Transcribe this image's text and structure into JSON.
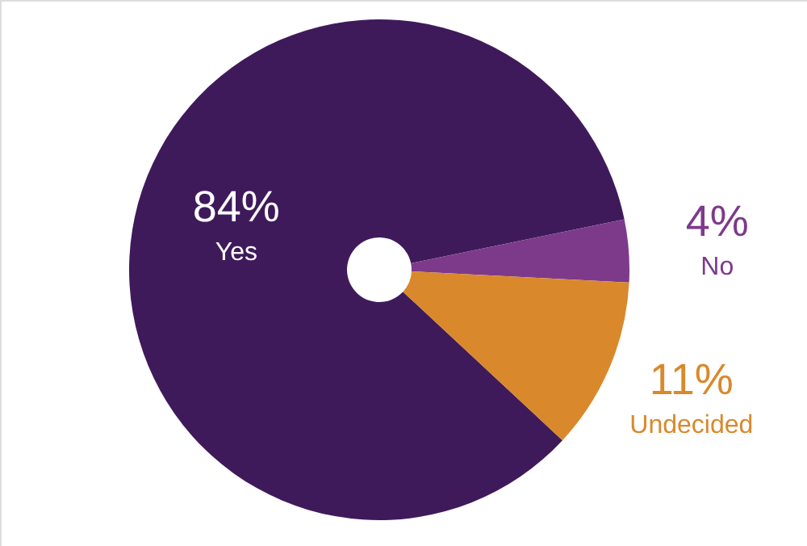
{
  "chart_data": {
    "type": "pie",
    "categories": [
      "Yes",
      "No",
      "Undecided"
    ],
    "values": [
      84,
      4,
      11
    ],
    "colors": [
      "#3f1a5b",
      "#7d3a8b",
      "#d9892b"
    ],
    "value_labels": [
      "84%",
      "4%",
      "11%"
    ]
  }
}
